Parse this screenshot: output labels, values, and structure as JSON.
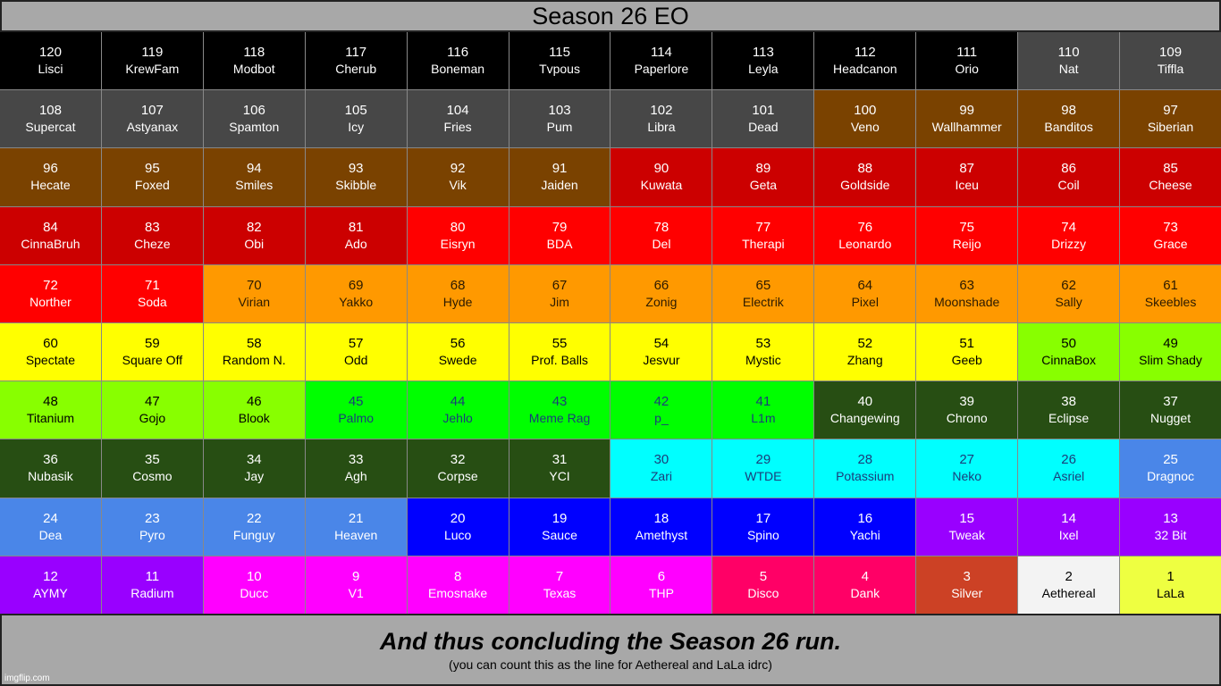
{
  "title": "Season 26 EO",
  "footer": {
    "main": "And thus concluding the Season 26 run.",
    "sub": "(you can count this as the line for Aethereal and LaLa idrc)"
  },
  "watermark": "imgflip.com",
  "colors": {
    "black": "#000000",
    "gray": "#474747",
    "brown": "#7a4200",
    "darkred": "#cc0000",
    "red": "#ff0000",
    "orange": "#ff9900",
    "yellow": "#ffff00",
    "lime": "#88ff00",
    "green": "#00ff00",
    "darkgreen": "#274e13",
    "cyan": "#00ffff",
    "cornflower": "#4a86e8",
    "blue": "#0000ff",
    "purple": "#9900ff",
    "magenta": "#ff00ff",
    "pink": "#ff0066",
    "rust": "#cc4125",
    "white": "#f3f3f3",
    "lightyellow": "#eeff41"
  },
  "entries": [
    {
      "num": "120",
      "name": "Lisci",
      "color": "black"
    },
    {
      "num": "119",
      "name": "KrewFam",
      "color": "black"
    },
    {
      "num": "118",
      "name": "Modbot",
      "color": "black"
    },
    {
      "num": "117",
      "name": "Cherub",
      "color": "black"
    },
    {
      "num": "116",
      "name": "Boneman",
      "color": "black"
    },
    {
      "num": "115",
      "name": "Tvpous",
      "color": "black"
    },
    {
      "num": "114",
      "name": "Paperlore",
      "color": "black"
    },
    {
      "num": "113",
      "name": "Leyla",
      "color": "black"
    },
    {
      "num": "112",
      "name": "Headcanon",
      "color": "black"
    },
    {
      "num": "111",
      "name": "Orio",
      "color": "black"
    },
    {
      "num": "110",
      "name": "Nat",
      "color": "gray"
    },
    {
      "num": "109",
      "name": "Tiffla",
      "color": "gray"
    },
    {
      "num": "108",
      "name": "Supercat",
      "color": "gray"
    },
    {
      "num": "107",
      "name": "Astyanax",
      "color": "gray"
    },
    {
      "num": "106",
      "name": "Spamton",
      "color": "gray"
    },
    {
      "num": "105",
      "name": "Icy",
      "color": "gray"
    },
    {
      "num": "104",
      "name": "Fries",
      "color": "gray"
    },
    {
      "num": "103",
      "name": "Pum",
      "color": "gray"
    },
    {
      "num": "102",
      "name": "Libra",
      "color": "gray"
    },
    {
      "num": "101",
      "name": "Dead",
      "color": "gray"
    },
    {
      "num": "100",
      "name": "Veno",
      "color": "brown"
    },
    {
      "num": "99",
      "name": "Wallhammer",
      "color": "brown"
    },
    {
      "num": "98",
      "name": "Banditos",
      "color": "brown"
    },
    {
      "num": "97",
      "name": "Siberian",
      "color": "brown"
    },
    {
      "num": "96",
      "name": "Hecate",
      "color": "brown"
    },
    {
      "num": "95",
      "name": "Foxed",
      "color": "brown"
    },
    {
      "num": "94",
      "name": "Smiles",
      "color": "brown"
    },
    {
      "num": "93",
      "name": "Skibble",
      "color": "brown"
    },
    {
      "num": "92",
      "name": "Vik",
      "color": "brown"
    },
    {
      "num": "91",
      "name": "Jaiden",
      "color": "brown"
    },
    {
      "num": "90",
      "name": "Kuwata",
      "color": "darkred"
    },
    {
      "num": "89",
      "name": "Geta",
      "color": "darkred"
    },
    {
      "num": "88",
      "name": "Goldside",
      "color": "darkred"
    },
    {
      "num": "87",
      "name": "Iceu",
      "color": "darkred"
    },
    {
      "num": "86",
      "name": "Coil",
      "color": "darkred"
    },
    {
      "num": "85",
      "name": "Cheese",
      "color": "darkred"
    },
    {
      "num": "84",
      "name": "CinnaBruh",
      "color": "darkred"
    },
    {
      "num": "83",
      "name": "Cheze",
      "color": "darkred"
    },
    {
      "num": "82",
      "name": "Obi",
      "color": "darkred"
    },
    {
      "num": "81",
      "name": "Ado",
      "color": "darkred"
    },
    {
      "num": "80",
      "name": "Eisryn",
      "color": "red"
    },
    {
      "num": "79",
      "name": "BDA",
      "color": "red"
    },
    {
      "num": "78",
      "name": "Del",
      "color": "red"
    },
    {
      "num": "77",
      "name": "Therapi",
      "color": "red"
    },
    {
      "num": "76",
      "name": "Leonardo",
      "color": "red"
    },
    {
      "num": "75",
      "name": "Reijo",
      "color": "red"
    },
    {
      "num": "74",
      "name": "Drizzy",
      "color": "red"
    },
    {
      "num": "73",
      "name": "Grace",
      "color": "red"
    },
    {
      "num": "72",
      "name": "Norther",
      "color": "red"
    },
    {
      "num": "71",
      "name": "Soda",
      "color": "red"
    },
    {
      "num": "70",
      "name": "Virian",
      "color": "orange"
    },
    {
      "num": "69",
      "name": "Yakko",
      "color": "orange"
    },
    {
      "num": "68",
      "name": "Hyde",
      "color": "orange"
    },
    {
      "num": "67",
      "name": "Jim",
      "color": "orange"
    },
    {
      "num": "66",
      "name": "Zonig",
      "color": "orange"
    },
    {
      "num": "65",
      "name": "Electrik",
      "color": "orange"
    },
    {
      "num": "64",
      "name": "Pixel",
      "color": "orange"
    },
    {
      "num": "63",
      "name": "Moonshade",
      "color": "orange"
    },
    {
      "num": "62",
      "name": "Sally",
      "color": "orange"
    },
    {
      "num": "61",
      "name": "Skeebles",
      "color": "orange"
    },
    {
      "num": "60",
      "name": "Spectate",
      "color": "yellow"
    },
    {
      "num": "59",
      "name": "Square Off",
      "color": "yellow"
    },
    {
      "num": "58",
      "name": "Random N.",
      "color": "yellow"
    },
    {
      "num": "57",
      "name": "Odd",
      "color": "yellow"
    },
    {
      "num": "56",
      "name": "Swede",
      "color": "yellow"
    },
    {
      "num": "55",
      "name": "Prof. Balls",
      "color": "yellow"
    },
    {
      "num": "54",
      "name": "Jesvur",
      "color": "yellow"
    },
    {
      "num": "53",
      "name": "Mystic",
      "color": "yellow"
    },
    {
      "num": "52",
      "name": "Zhang",
      "color": "yellow"
    },
    {
      "num": "51",
      "name": "Geeb",
      "color": "yellow"
    },
    {
      "num": "50",
      "name": "CinnaBox",
      "color": "lime"
    },
    {
      "num": "49",
      "name": "Slim Shady",
      "color": "lime"
    },
    {
      "num": "48",
      "name": "Titanium",
      "color": "lime"
    },
    {
      "num": "47",
      "name": "Gojo",
      "color": "lime"
    },
    {
      "num": "46",
      "name": "Blook",
      "color": "lime"
    },
    {
      "num": "45",
      "name": "Palmo",
      "color": "green"
    },
    {
      "num": "44",
      "name": "Jehlo",
      "color": "green"
    },
    {
      "num": "43",
      "name": "Meme Rag",
      "color": "green"
    },
    {
      "num": "42",
      "name": "p_",
      "color": "green"
    },
    {
      "num": "41",
      "name": "L1m",
      "color": "green"
    },
    {
      "num": "40",
      "name": "Changewing",
      "color": "darkgreen"
    },
    {
      "num": "39",
      "name": "Chrono",
      "color": "darkgreen"
    },
    {
      "num": "38",
      "name": "Eclipse",
      "color": "darkgreen"
    },
    {
      "num": "37",
      "name": "Nugget",
      "color": "darkgreen"
    },
    {
      "num": "36",
      "name": "Nubasik",
      "color": "darkgreen"
    },
    {
      "num": "35",
      "name": "Cosmo",
      "color": "darkgreen"
    },
    {
      "num": "34",
      "name": "Jay",
      "color": "darkgreen"
    },
    {
      "num": "33",
      "name": "Agh",
      "color": "darkgreen"
    },
    {
      "num": "32",
      "name": "Corpse",
      "color": "darkgreen"
    },
    {
      "num": "31",
      "name": "YCI",
      "color": "darkgreen"
    },
    {
      "num": "30",
      "name": "Zari",
      "color": "cyan"
    },
    {
      "num": "29",
      "name": "WTDE",
      "color": "cyan"
    },
    {
      "num": "28",
      "name": "Potassium",
      "color": "cyan"
    },
    {
      "num": "27",
      "name": "Neko",
      "color": "cyan"
    },
    {
      "num": "26",
      "name": "Asriel",
      "color": "cyan"
    },
    {
      "num": "25",
      "name": "Dragnoc",
      "color": "cornflower"
    },
    {
      "num": "24",
      "name": "Dea",
      "color": "cornflower"
    },
    {
      "num": "23",
      "name": "Pyro",
      "color": "cornflower"
    },
    {
      "num": "22",
      "name": "Funguy",
      "color": "cornflower"
    },
    {
      "num": "21",
      "name": "Heaven",
      "color": "cornflower"
    },
    {
      "num": "20",
      "name": "Luco",
      "color": "blue"
    },
    {
      "num": "19",
      "name": "Sauce",
      "color": "blue"
    },
    {
      "num": "18",
      "name": "Amethyst",
      "color": "blue"
    },
    {
      "num": "17",
      "name": "Spino",
      "color": "blue"
    },
    {
      "num": "16",
      "name": "Yachi",
      "color": "blue"
    },
    {
      "num": "15",
      "name": "Tweak",
      "color": "purple"
    },
    {
      "num": "14",
      "name": "Ixel",
      "color": "purple"
    },
    {
      "num": "13",
      "name": "32 Bit",
      "color": "purple"
    },
    {
      "num": "12",
      "name": "AYMY",
      "color": "purple"
    },
    {
      "num": "11",
      "name": "Radium",
      "color": "purple"
    },
    {
      "num": "10",
      "name": "Ducc",
      "color": "magenta"
    },
    {
      "num": "9",
      "name": "V1",
      "color": "magenta"
    },
    {
      "num": "8",
      "name": "Emosnake",
      "color": "magenta"
    },
    {
      "num": "7",
      "name": "Texas",
      "color": "magenta"
    },
    {
      "num": "6",
      "name": "THP",
      "color": "magenta"
    },
    {
      "num": "5",
      "name": "Disco",
      "color": "pink"
    },
    {
      "num": "4",
      "name": "Dank",
      "color": "pink"
    },
    {
      "num": "3",
      "name": "Silver",
      "color": "rust"
    },
    {
      "num": "2",
      "name": "Aethereal",
      "color": "white"
    },
    {
      "num": "1",
      "name": "LaLa",
      "color": "lightyellow"
    }
  ]
}
